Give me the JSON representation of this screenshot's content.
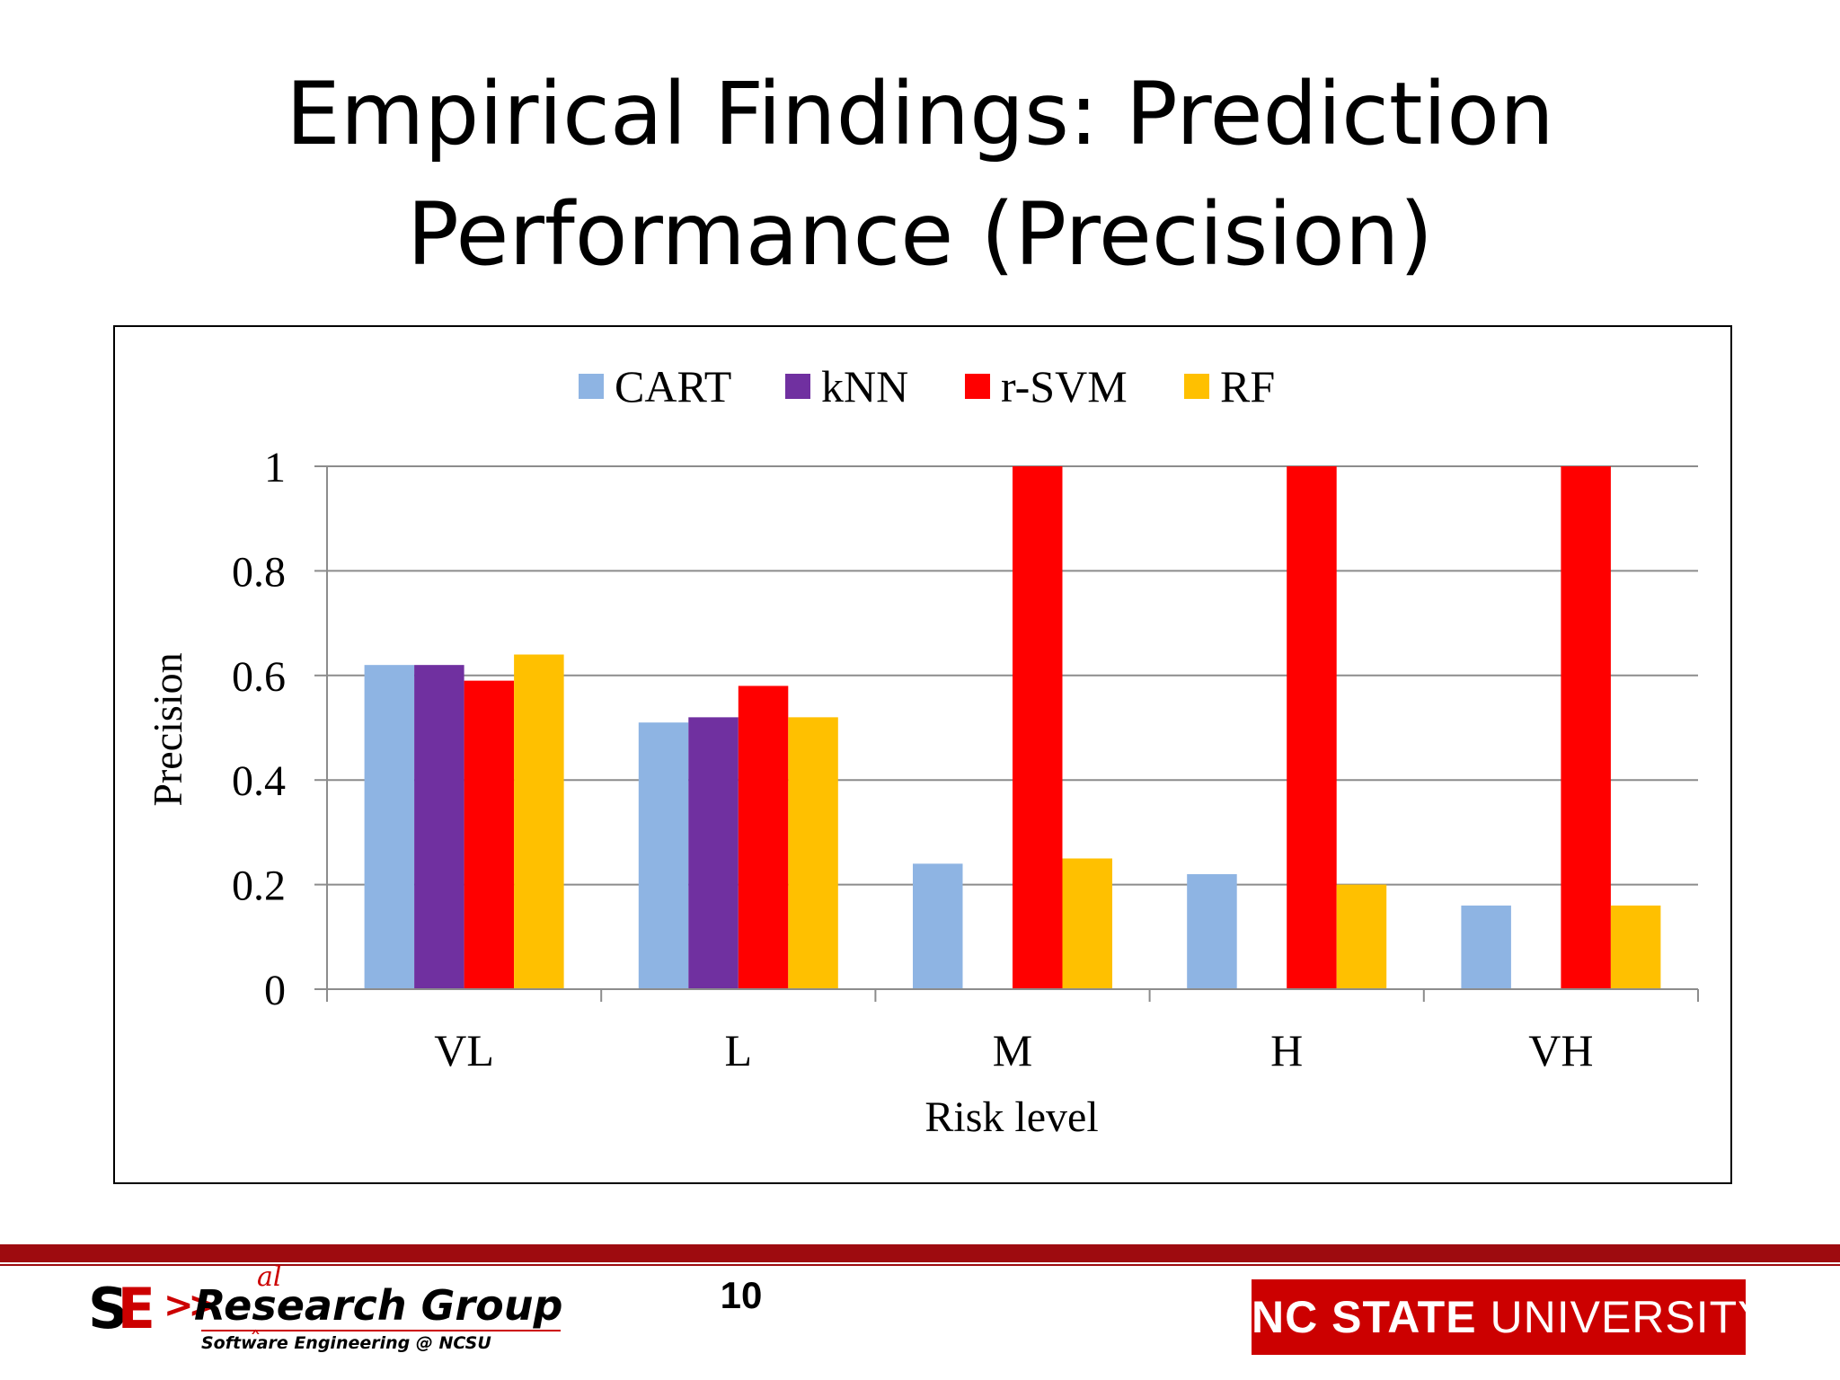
{
  "slide": {
    "title_line1": "Empirical Findings: Prediction",
    "title_line2": "Performance (Precision)",
    "page_number": "10"
  },
  "footer": {
    "left_logo": {
      "mark": "SE",
      "arrows": ">>",
      "name_prefix": "Re",
      "name_insert": "al",
      "name_suffix": "search Group",
      "subtitle": "Software Engineering @ NCSU"
    },
    "right_logo": {
      "bold_text": "NC STATE",
      "light_text": "UNIVERSITY"
    },
    "bar_color": "#9e0b0f"
  },
  "chart_data": {
    "type": "bar",
    "xlabel": "Risk level",
    "ylabel": "Precision",
    "ylim": [
      0,
      1
    ],
    "yticks": [
      "0",
      "0.2",
      "0.4",
      "0.6",
      "0.8",
      "1"
    ],
    "grid": true,
    "legend_position": "top",
    "categories": [
      "VL",
      "L",
      "M",
      "H",
      "VH"
    ],
    "series": [
      {
        "name": "CART",
        "color": "#8eb4e3",
        "values": [
          0.62,
          0.51,
          0.24,
          0.22,
          0.16
        ]
      },
      {
        "name": "kNN",
        "color": "#7030a0",
        "values": [
          0.62,
          0.52,
          0,
          0,
          0
        ]
      },
      {
        "name": "r-SVM",
        "color": "#ff0000",
        "values": [
          0.59,
          0.58,
          1,
          1,
          1
        ]
      },
      {
        "name": "RF",
        "color": "#ffc000",
        "values": [
          0.64,
          0.52,
          0.25,
          0.2,
          0.16
        ]
      }
    ]
  }
}
